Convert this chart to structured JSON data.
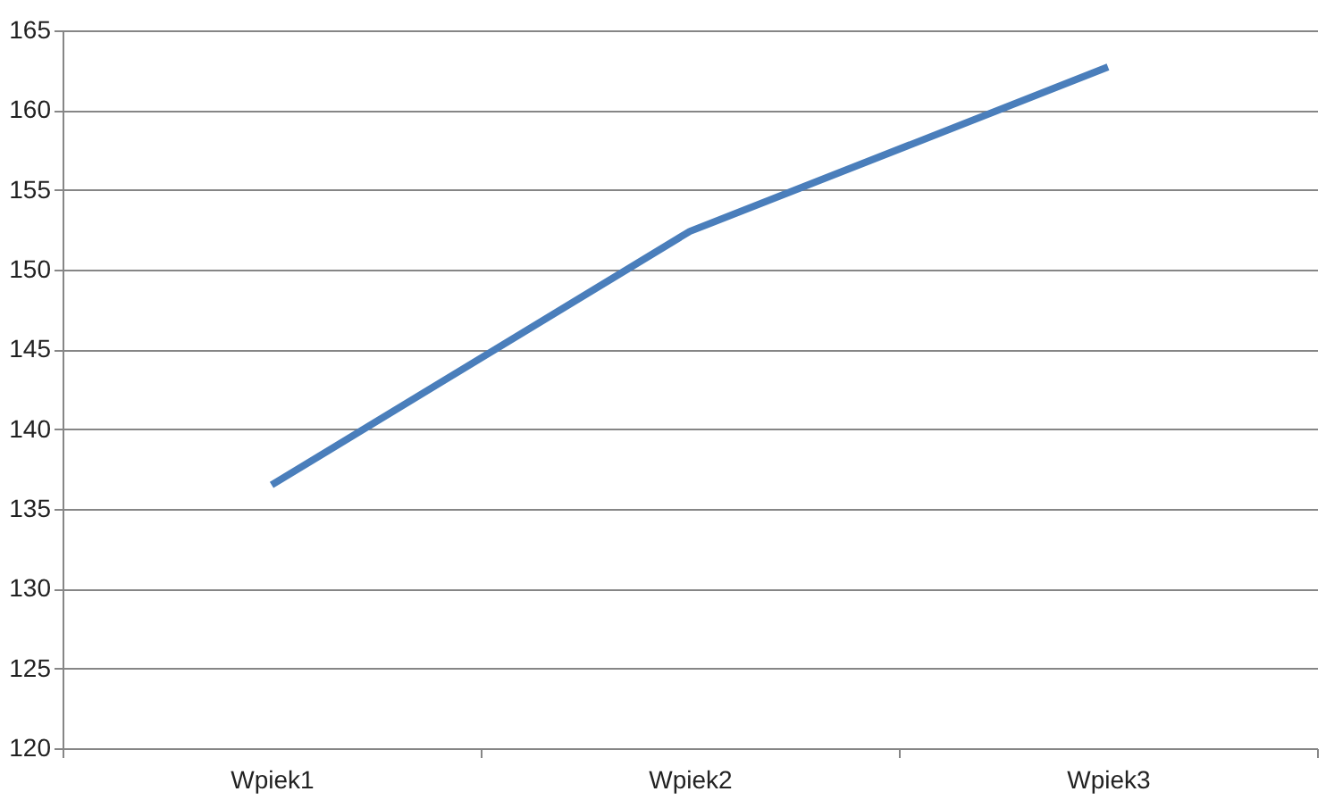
{
  "chart_data": {
    "type": "line",
    "categories": [
      "Wpiek1",
      "Wpiek2",
      "Wpiek3"
    ],
    "series": [
      {
        "color": "#4a7ebb",
        "values": [
          136.5,
          152.4,
          162.7
        ]
      }
    ],
    "ylim": [
      120,
      165
    ],
    "yticks": [
      120,
      125,
      130,
      135,
      140,
      145,
      150,
      155,
      160,
      165
    ],
    "grid": "y",
    "marker": "none",
    "line_style": "solid"
  }
}
